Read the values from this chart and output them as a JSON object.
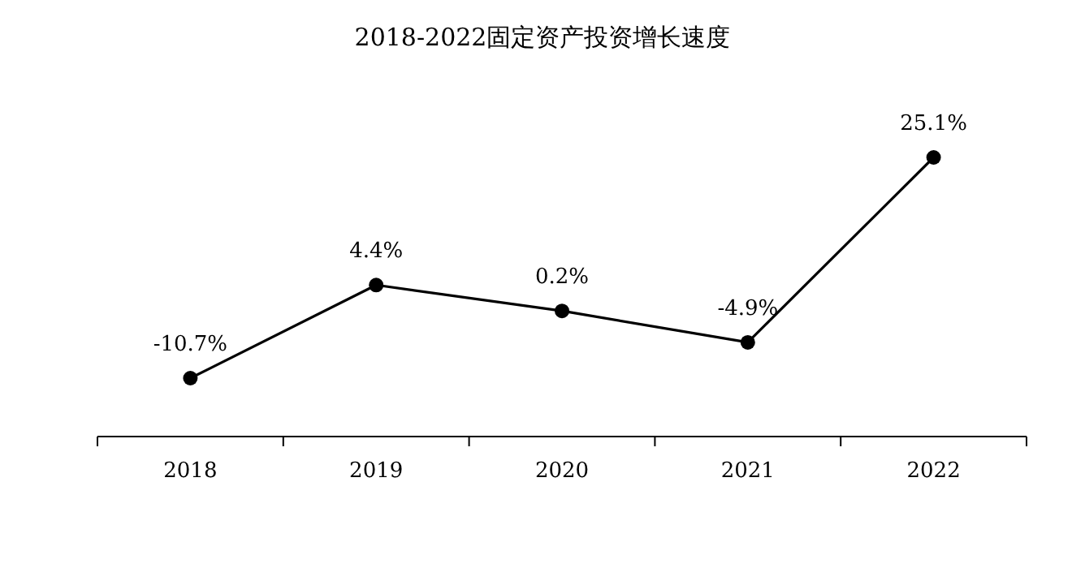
{
  "chart_data": {
    "type": "line",
    "title": "2018-2022固定资产投资增长速度",
    "categories": [
      "2018",
      "2019",
      "2020",
      "2021",
      "2022"
    ],
    "values": [
      -10.7,
      4.4,
      0.2,
      -4.9,
      25.1
    ],
    "value_labels": [
      "-10.7%",
      "4.4%",
      "0.2%",
      "-4.9%",
      "25.1%"
    ],
    "color": "#000000",
    "marker": "circle"
  }
}
